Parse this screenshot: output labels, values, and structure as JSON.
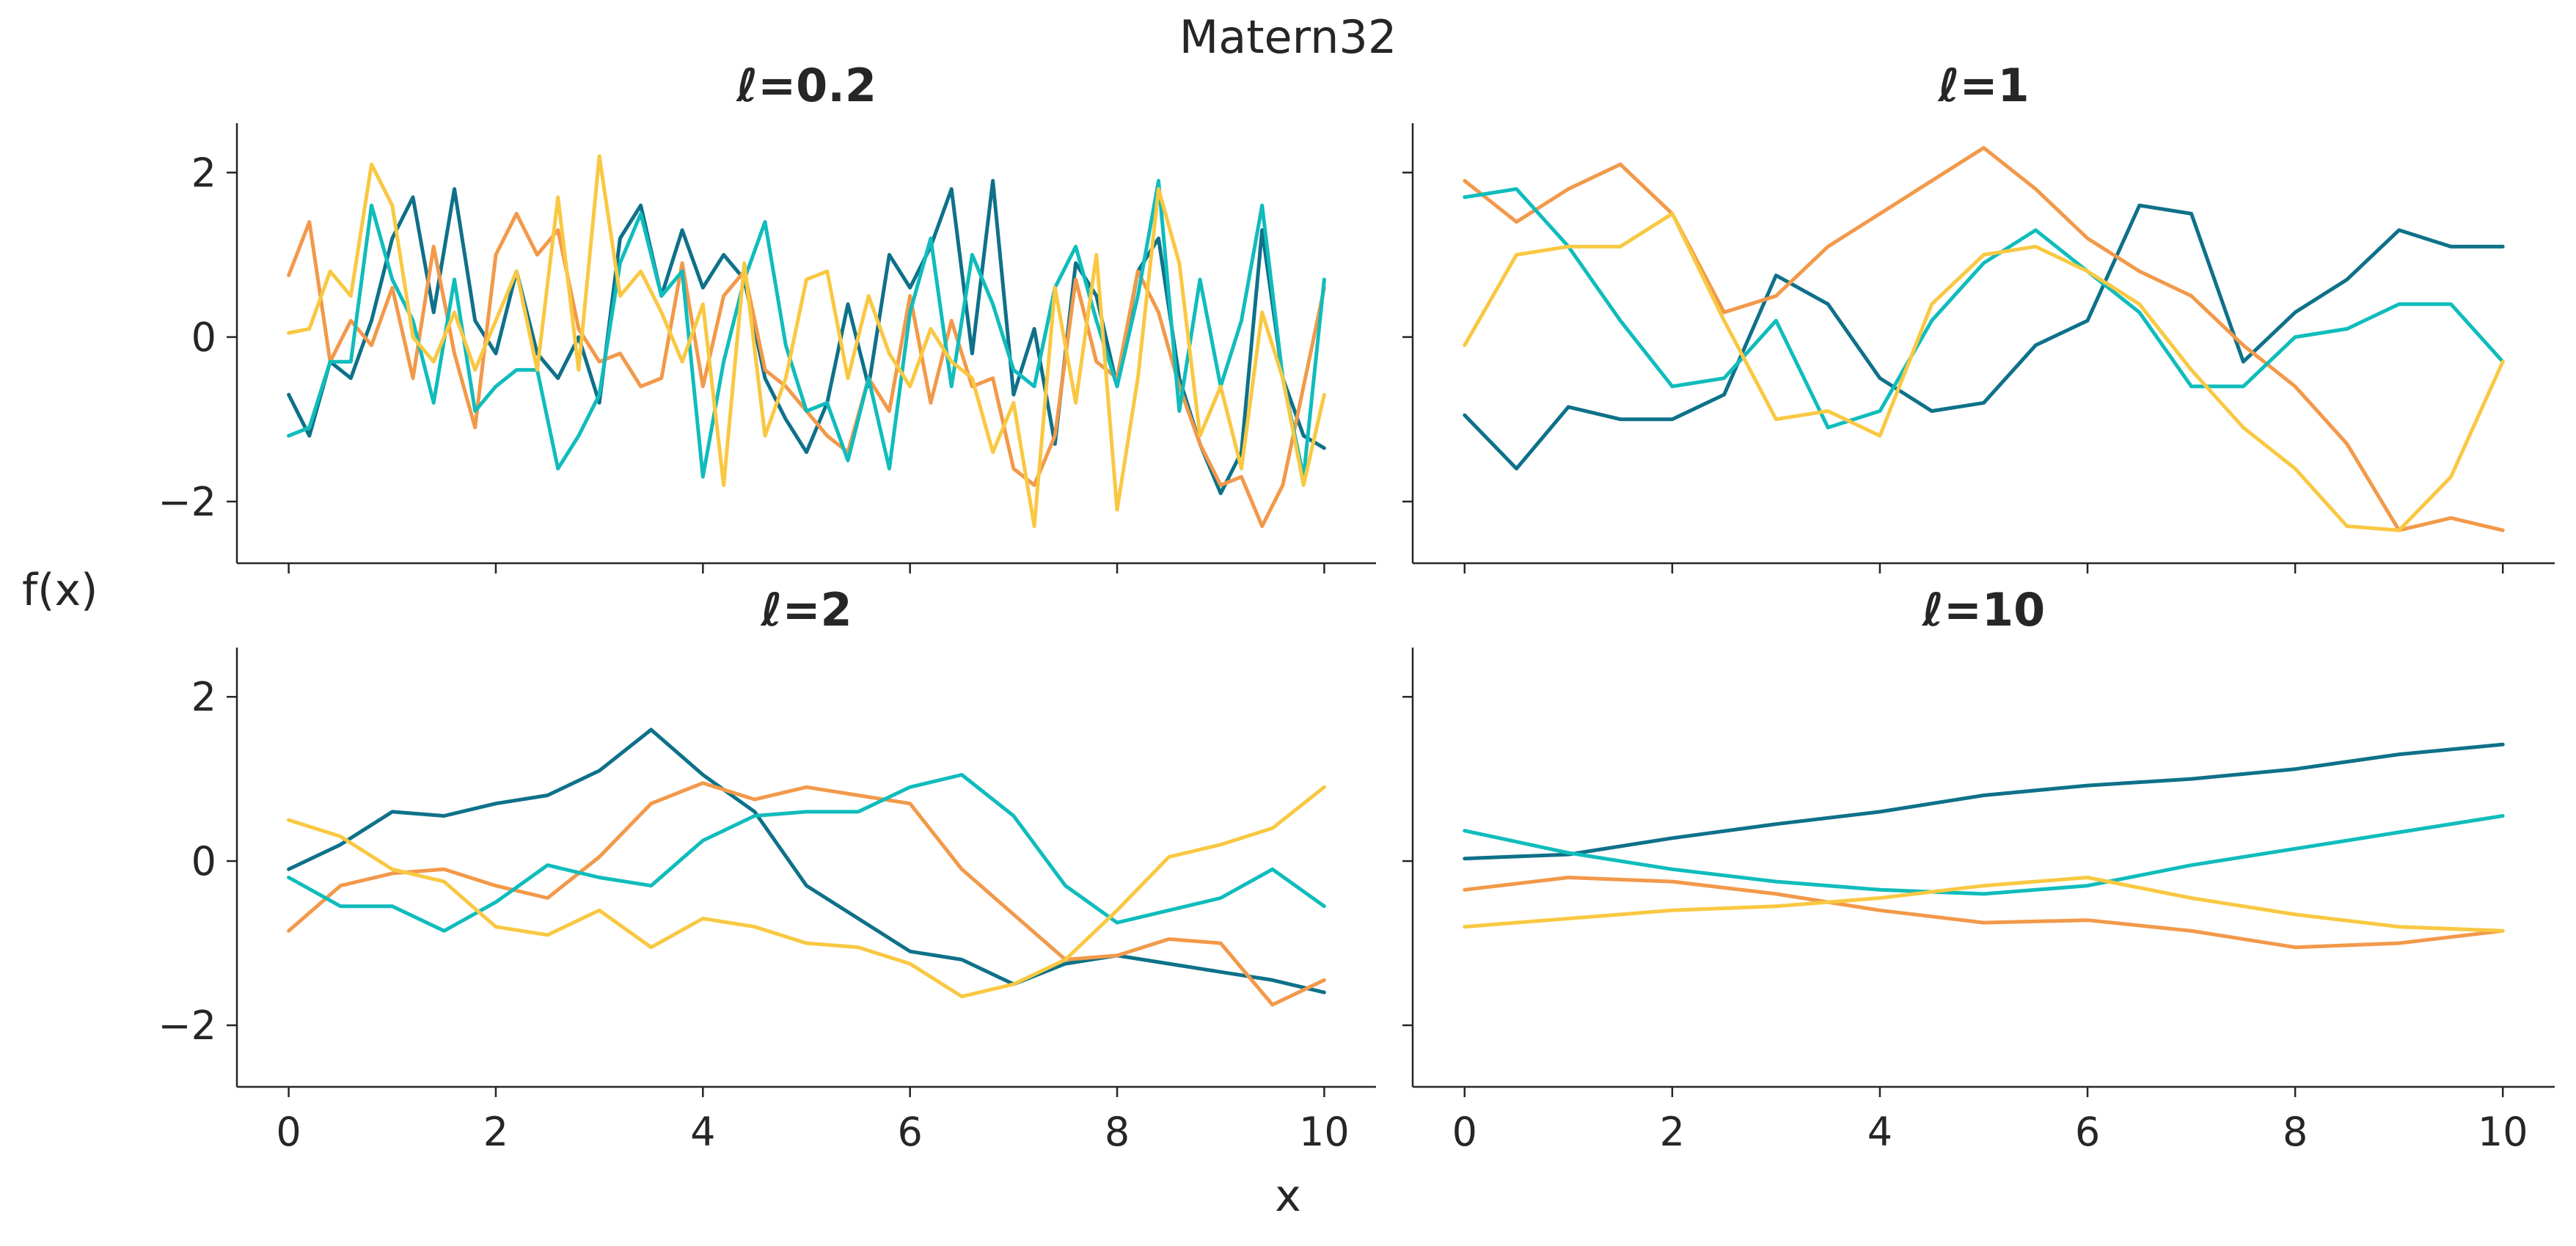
{
  "figure": {
    "suptitle": "Matern32",
    "xlabel": "x",
    "ylabel": "f(x)"
  },
  "colors": {
    "series": [
      "#0e7189",
      "#f2994a",
      "#10bcbc",
      "#f9c842"
    ],
    "axis": "#262626"
  },
  "chart_data": [
    {
      "type": "line",
      "title": "ℓ=0.2",
      "xlim": [
        -0.5,
        10.5
      ],
      "ylim": [
        -2.75,
        2.6
      ],
      "xticks": [
        0,
        2,
        4,
        6,
        8,
        10
      ],
      "yticks": [
        -2,
        0,
        2
      ],
      "ytick_labels": [
        "−2",
        "0",
        "2"
      ],
      "show_xtick_labels": false,
      "show_ytick_labels": true,
      "series": [
        {
          "x": [
            0,
            0.2,
            0.4,
            0.6,
            0.8,
            1,
            1.2,
            1.4,
            1.6,
            1.8,
            2,
            2.2,
            2.4,
            2.6,
            2.8,
            3,
            3.2,
            3.4,
            3.6,
            3.8,
            4,
            4.2,
            4.4,
            4.6,
            4.8,
            5,
            5.2,
            5.4,
            5.6,
            5.8,
            6,
            6.2,
            6.4,
            6.6,
            6.8,
            7,
            7.2,
            7.4,
            7.6,
            7.8,
            8,
            8.2,
            8.4,
            8.6,
            8.8,
            9,
            9.2,
            9.4,
            9.6,
            9.8,
            10
          ],
          "y": [
            -0.7,
            -1.2,
            -0.3,
            -0.5,
            0.2,
            1.2,
            1.7,
            0.3,
            1.8,
            0.2,
            -0.2,
            0.8,
            -0.2,
            -0.5,
            0,
            -0.8,
            1.2,
            1.6,
            0.5,
            1.3,
            0.6,
            1,
            0.7,
            -0.5,
            -1,
            -1.4,
            -0.8,
            0.4,
            -0.6,
            1,
            0.6,
            1.1,
            1.8,
            -0.2,
            1.9,
            -0.7,
            0.1,
            -1.3,
            0.9,
            0.5,
            -0.6,
            0.8,
            1.2,
            -0.5,
            -1.3,
            -1.9,
            -1.4,
            1.3,
            -0.5,
            -1.2,
            -1.35
          ]
        },
        {
          "x": [
            0,
            0.2,
            0.4,
            0.6,
            0.8,
            1,
            1.2,
            1.4,
            1.6,
            1.8,
            2,
            2.2,
            2.4,
            2.6,
            2.8,
            3,
            3.2,
            3.4,
            3.6,
            3.8,
            4,
            4.2,
            4.4,
            4.6,
            4.8,
            5,
            5.2,
            5.4,
            5.6,
            5.8,
            6,
            6.2,
            6.4,
            6.6,
            6.8,
            7,
            7.2,
            7.4,
            7.6,
            7.8,
            8,
            8.2,
            8.4,
            8.6,
            8.8,
            9,
            9.2,
            9.4,
            9.6,
            9.8,
            10
          ],
          "y": [
            0.75,
            1.4,
            -0.3,
            0.2,
            -0.1,
            0.6,
            -0.5,
            1.1,
            -0.2,
            -1.1,
            1.0,
            1.5,
            1.0,
            1.3,
            0.1,
            -0.3,
            -0.2,
            -0.6,
            -0.5,
            0.9,
            -0.6,
            0.5,
            0.8,
            -0.4,
            -0.6,
            -0.9,
            -1.2,
            -1.4,
            -0.5,
            -0.9,
            0.5,
            -0.8,
            0.2,
            -0.6,
            -0.5,
            -1.6,
            -1.8,
            -1.2,
            0.7,
            -0.3,
            -0.5,
            0.8,
            0.3,
            -0.6,
            -1.3,
            -1.8,
            -1.7,
            -2.3,
            -1.8,
            -0.6,
            0.6
          ]
        },
        {
          "x": [
            0,
            0.2,
            0.4,
            0.6,
            0.8,
            1,
            1.2,
            1.4,
            1.6,
            1.8,
            2,
            2.2,
            2.4,
            2.6,
            2.8,
            3,
            3.2,
            3.4,
            3.6,
            3.8,
            4,
            4.2,
            4.4,
            4.6,
            4.8,
            5,
            5.2,
            5.4,
            5.6,
            5.8,
            6,
            6.2,
            6.4,
            6.6,
            6.8,
            7,
            7.2,
            7.4,
            7.6,
            7.8,
            8,
            8.2,
            8.4,
            8.6,
            8.8,
            9,
            9.2,
            9.4,
            9.6,
            9.8,
            10
          ],
          "y": [
            -1.2,
            -1.1,
            -0.3,
            -0.3,
            1.6,
            0.7,
            0.2,
            -0.8,
            0.7,
            -0.9,
            -0.6,
            -0.4,
            -0.4,
            -1.6,
            -1.2,
            -0.7,
            0.9,
            1.5,
            0.5,
            0.8,
            -1.7,
            -0.3,
            0.7,
            1.4,
            -0.1,
            -0.9,
            -0.8,
            -1.5,
            -0.5,
            -1.6,
            0.3,
            1.2,
            -0.6,
            1.0,
            0.4,
            -0.4,
            -0.6,
            0.6,
            1.1,
            0.2,
            -0.6,
            0.5,
            1.9,
            -0.9,
            0.7,
            -0.6,
            0.2,
            1.6,
            -0.5,
            -1.7,
            0.7
          ]
        },
        {
          "x": [
            0,
            0.2,
            0.4,
            0.6,
            0.8,
            1,
            1.2,
            1.4,
            1.6,
            1.8,
            2,
            2.2,
            2.4,
            2.6,
            2.8,
            3,
            3.2,
            3.4,
            3.6,
            3.8,
            4,
            4.2,
            4.4,
            4.6,
            4.8,
            5,
            5.2,
            5.4,
            5.6,
            5.8,
            6,
            6.2,
            6.4,
            6.6,
            6.8,
            7,
            7.2,
            7.4,
            7.6,
            7.8,
            8,
            8.2,
            8.4,
            8.6,
            8.8,
            9,
            9.2,
            9.4,
            9.6,
            9.8,
            10
          ],
          "y": [
            0.05,
            0.1,
            0.8,
            0.5,
            2.1,
            1.6,
            0,
            -0.3,
            0.3,
            -0.4,
            0.2,
            0.8,
            -0.4,
            1.7,
            -0.4,
            2.2,
            0.5,
            0.8,
            0.3,
            -0.3,
            0.4,
            -1.8,
            0.9,
            -1.2,
            -0.5,
            0.7,
            0.8,
            -0.5,
            0.5,
            -0.2,
            -0.6,
            0.1,
            -0.3,
            -0.5,
            -1.4,
            -0.8,
            -2.3,
            0.6,
            -0.8,
            1.0,
            -2.1,
            -0.5,
            1.8,
            0.9,
            -1.2,
            -0.6,
            -1.6,
            0.3,
            -0.5,
            -1.8,
            -0.7
          ]
        }
      ]
    },
    {
      "type": "line",
      "title": "ℓ=1",
      "xlim": [
        -0.5,
        10.5
      ],
      "ylim": [
        -2.75,
        2.6
      ],
      "xticks": [
        0,
        2,
        4,
        6,
        8,
        10
      ],
      "yticks": [
        -2,
        0,
        2
      ],
      "ytick_labels": [
        "−2",
        "0",
        "2"
      ],
      "show_xtick_labels": false,
      "show_ytick_labels": false,
      "series": [
        {
          "x": [
            0,
            0.5,
            1,
            1.5,
            2,
            2.5,
            3,
            3.5,
            4,
            4.5,
            5,
            5.5,
            6,
            6.5,
            7,
            7.5,
            8,
            8.5,
            9,
            9.5,
            10
          ],
          "y": [
            -0.95,
            -1.6,
            -0.85,
            -1.0,
            -1.0,
            -0.7,
            0.75,
            0.4,
            -0.5,
            -0.9,
            -0.8,
            -0.1,
            0.2,
            1.6,
            1.5,
            -0.3,
            0.3,
            0.7,
            1.3,
            1.1,
            1.1
          ]
        },
        {
          "x": [
            0,
            0.5,
            1,
            1.5,
            2,
            2.5,
            3,
            3.5,
            4,
            4.5,
            5,
            5.5,
            6,
            6.5,
            7,
            7.5,
            8,
            8.5,
            9,
            9.5,
            10
          ],
          "y": [
            1.9,
            1.4,
            1.8,
            2.1,
            1.5,
            0.3,
            0.5,
            1.1,
            1.5,
            1.9,
            2.3,
            1.8,
            1.2,
            0.8,
            0.5,
            -0.1,
            -0.6,
            -1.3,
            -2.35,
            -2.2,
            -2.35
          ]
        },
        {
          "x": [
            0,
            0.5,
            1,
            1.5,
            2,
            2.5,
            3,
            3.5,
            4,
            4.5,
            5,
            5.5,
            6,
            6.5,
            7,
            7.5,
            8,
            8.5,
            9,
            9.5,
            10
          ],
          "y": [
            1.7,
            1.8,
            1.1,
            0.2,
            -0.6,
            -0.5,
            0.2,
            -1.1,
            -0.9,
            0.2,
            0.9,
            1.3,
            0.8,
            0.3,
            -0.6,
            -0.6,
            0,
            0.1,
            0.4,
            0.4,
            -0.3
          ]
        },
        {
          "x": [
            0,
            0.5,
            1,
            1.5,
            2,
            2.5,
            3,
            3.5,
            4,
            4.5,
            5,
            5.5,
            6,
            6.5,
            7,
            7.5,
            8,
            8.5,
            9,
            9.5,
            10
          ],
          "y": [
            -0.1,
            1.0,
            1.1,
            1.1,
            1.5,
            0.2,
            -1.0,
            -0.9,
            -1.2,
            0.4,
            1.0,
            1.1,
            0.8,
            0.4,
            -0.4,
            -1.1,
            -1.6,
            -2.3,
            -2.35,
            -1.7,
            -0.3
          ]
        }
      ]
    },
    {
      "type": "line",
      "title": "ℓ=2",
      "xlim": [
        -0.5,
        10.5
      ],
      "ylim": [
        -2.75,
        2.6
      ],
      "xticks": [
        0,
        2,
        4,
        6,
        8,
        10
      ],
      "yticks": [
        -2,
        0,
        2
      ],
      "ytick_labels": [
        "−2",
        "0",
        "2"
      ],
      "show_xtick_labels": true,
      "show_ytick_labels": true,
      "series": [
        {
          "x": [
            0,
            0.5,
            1,
            1.5,
            2,
            2.5,
            3,
            3.5,
            4,
            4.5,
            5,
            5.5,
            6,
            6.5,
            7,
            7.5,
            8,
            8.5,
            9,
            9.5,
            10
          ],
          "y": [
            -0.1,
            0.2,
            0.6,
            0.55,
            0.7,
            0.8,
            1.1,
            1.6,
            1.05,
            0.6,
            -0.3,
            -0.7,
            -1.1,
            -1.2,
            -1.5,
            -1.25,
            -1.15,
            -1.25,
            -1.35,
            -1.45,
            -1.6
          ]
        },
        {
          "x": [
            0,
            0.5,
            1,
            1.5,
            2,
            2.5,
            3,
            3.5,
            4,
            4.5,
            5,
            5.5,
            6,
            6.5,
            7,
            7.5,
            8,
            8.5,
            9,
            9.5,
            10
          ],
          "y": [
            -0.85,
            -0.3,
            -0.15,
            -0.1,
            -0.3,
            -0.45,
            0.05,
            0.7,
            0.95,
            0.75,
            0.9,
            0.8,
            0.7,
            -0.1,
            -0.65,
            -1.2,
            -1.15,
            -0.95,
            -1.0,
            -1.75,
            -1.45
          ]
        },
        {
          "x": [
            0,
            0.5,
            1,
            1.5,
            2,
            2.5,
            3,
            3.5,
            4,
            4.5,
            5,
            5.5,
            6,
            6.5,
            7,
            7.5,
            8,
            8.5,
            9,
            9.5,
            10
          ],
          "y": [
            -0.2,
            -0.55,
            -0.55,
            -0.85,
            -0.5,
            -0.05,
            -0.2,
            -0.3,
            0.25,
            0.55,
            0.6,
            0.6,
            0.9,
            1.05,
            0.55,
            -0.3,
            -0.75,
            -0.6,
            -0.45,
            -0.1,
            -0.55
          ]
        },
        {
          "x": [
            0,
            0.5,
            1,
            1.5,
            2,
            2.5,
            3,
            3.5,
            4,
            4.5,
            5,
            5.5,
            6,
            6.5,
            7,
            7.5,
            8,
            8.5,
            9,
            9.5,
            10
          ],
          "y": [
            0.5,
            0.3,
            -0.1,
            -0.25,
            -0.8,
            -0.9,
            -0.6,
            -1.05,
            -0.7,
            -0.8,
            -1.0,
            -1.05,
            -1.25,
            -1.65,
            -1.5,
            -1.2,
            -0.6,
            0.05,
            0.2,
            0.4,
            0.9
          ]
        }
      ]
    },
    {
      "type": "line",
      "title": "ℓ=10",
      "xlim": [
        -0.5,
        10.5
      ],
      "ylim": [
        -2.75,
        2.6
      ],
      "xticks": [
        0,
        2,
        4,
        6,
        8,
        10
      ],
      "yticks": [
        -2,
        0,
        2
      ],
      "ytick_labels": [
        "−2",
        "0",
        "2"
      ],
      "show_xtick_labels": true,
      "show_ytick_labels": false,
      "series": [
        {
          "x": [
            0,
            1,
            2,
            3,
            4,
            5,
            6,
            7,
            8,
            9,
            10
          ],
          "y": [
            0.03,
            0.08,
            0.28,
            0.45,
            0.6,
            0.8,
            0.92,
            1.0,
            1.12,
            1.3,
            1.42
          ]
        },
        {
          "x": [
            0,
            1,
            2,
            3,
            4,
            5,
            6,
            7,
            8,
            9,
            10
          ],
          "y": [
            -0.35,
            -0.2,
            -0.25,
            -0.4,
            -0.6,
            -0.75,
            -0.72,
            -0.85,
            -1.05,
            -1.0,
            -0.85
          ]
        },
        {
          "x": [
            0,
            1,
            2,
            3,
            4,
            5,
            6,
            7,
            8,
            9,
            10
          ],
          "y": [
            0.37,
            0.1,
            -0.1,
            -0.25,
            -0.35,
            -0.4,
            -0.3,
            -0.05,
            0.15,
            0.35,
            0.55
          ]
        },
        {
          "x": [
            0,
            1,
            2,
            3,
            4,
            5,
            6,
            7,
            8,
            9,
            10
          ],
          "y": [
            -0.8,
            -0.7,
            -0.6,
            -0.55,
            -0.45,
            -0.3,
            -0.2,
            -0.45,
            -0.65,
            -0.8,
            -0.85
          ]
        }
      ]
    }
  ]
}
